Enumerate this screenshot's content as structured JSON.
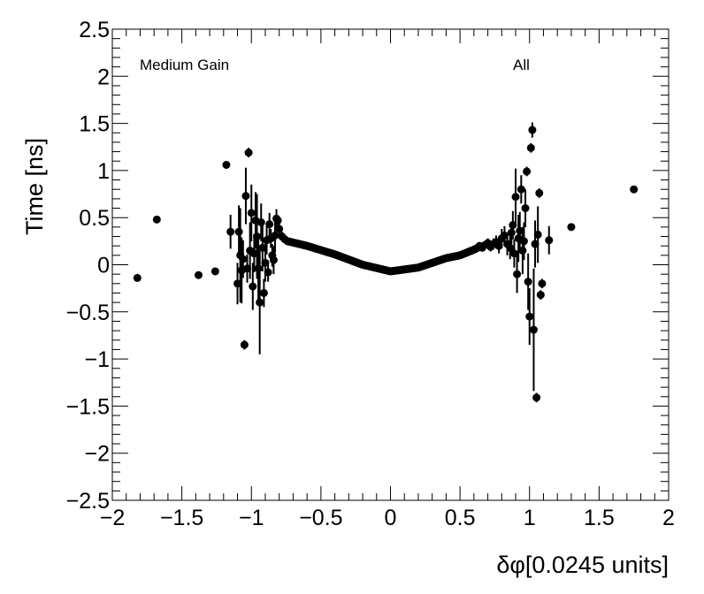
{
  "chart_data": {
    "type": "scatter",
    "title": "",
    "xlabel": "δφ[0.0245 units]",
    "ylabel": "Time [ns]",
    "xlim": [
      -2,
      2
    ],
    "ylim": [
      -2.5,
      2.5
    ],
    "x_ticks": [
      -2,
      -1.5,
      -1,
      -0.5,
      0,
      0.5,
      1,
      1.5,
      2
    ],
    "x_tick_labels": [
      "−2",
      "−1.5",
      "−1",
      "−0.5",
      "0",
      "0.5",
      "1",
      "1.5",
      "2"
    ],
    "y_ticks": [
      -2.5,
      -2,
      -1.5,
      -1,
      -0.5,
      0,
      0.5,
      1,
      1.5,
      2,
      2.5
    ],
    "y_tick_labels": [
      "−2.5",
      "−2",
      "−1.5",
      "−1",
      "−0.5",
      "0",
      "0.5",
      "1",
      "1.5",
      "2",
      "2.5"
    ],
    "grid": false,
    "legend": "none",
    "annotations": [
      "Medium Gain",
      "All"
    ],
    "marker_color": "#000000",
    "series": [
      {
        "x": [
          -1.82,
          -1.68,
          -1.38,
          -1.26,
          -1.18,
          -1.15,
          -1.1,
          -1.09,
          -1.08,
          -1.07,
          -1.06,
          -1.05,
          -1.04,
          -1.03,
          -1.02,
          -1.01,
          -1.0,
          -0.99,
          -0.98,
          -0.97,
          -0.96,
          -0.95,
          -0.94,
          -0.93,
          -0.92,
          -0.91,
          -0.9,
          -0.89,
          -0.88,
          -0.87,
          -0.86,
          -0.85,
          -0.84,
          -0.83,
          -0.82,
          -0.81,
          -0.8,
          -0.78,
          -0.76,
          -0.74,
          0.64,
          0.66,
          0.68,
          0.7,
          0.72,
          0.74,
          0.76,
          0.78,
          0.8,
          0.82,
          0.84,
          0.86,
          0.87,
          0.88,
          0.89,
          0.9,
          0.91,
          0.92,
          0.93,
          0.94,
          0.95,
          0.96,
          0.97,
          0.98,
          0.99,
          1.0,
          1.01,
          1.02,
          1.03,
          1.04,
          1.05,
          1.06,
          1.07,
          1.08,
          1.09,
          1.14,
          1.3,
          1.75
        ],
        "y": [
          -0.14,
          0.48,
          -0.11,
          -0.07,
          1.06,
          0.35,
          -0.2,
          0.35,
          0.1,
          -0.06,
          0.06,
          -0.85,
          0.73,
          -0.04,
          1.19,
          0.15,
          0.55,
          -0.23,
          0.12,
          0.47,
          0.3,
          -0.04,
          -0.4,
          0.45,
          0.18,
          -0.3,
          0.02,
          0.26,
          -0.08,
          0.43,
          0.28,
          0.1,
          0.05,
          0.31,
          0.49,
          0.47,
          0.38,
          0.3,
          0.27,
          0.25,
          0.2,
          0.18,
          0.21,
          0.23,
          0.19,
          0.22,
          0.24,
          0.2,
          0.28,
          0.31,
          0.22,
          0.18,
          0.34,
          0.42,
          0.12,
          0.72,
          -0.1,
          0.28,
          0.36,
          0.8,
          0.15,
          0.25,
          0.6,
          0.99,
          -0.18,
          -0.55,
          1.24,
          1.43,
          -0.69,
          0.22,
          -1.41,
          0.32,
          0.76,
          -0.32,
          -0.2,
          0.26,
          0.4,
          0.8
        ],
        "yerr": [
          0,
          0,
          0,
          0,
          0,
          0.18,
          0.22,
          0.28,
          0.5,
          0.35,
          0.2,
          0.05,
          0.3,
          0.15,
          0.05,
          0.3,
          0.3,
          0.25,
          0.2,
          0.3,
          0.45,
          0.35,
          0.55,
          0.2,
          0.25,
          0.15,
          0.2,
          0.15,
          0.1,
          0.12,
          0.1,
          0.12,
          0.15,
          0.18,
          0.1,
          0.05,
          0.08,
          0.05,
          0.04,
          0.03,
          0.03,
          0.03,
          0.04,
          0.05,
          0.05,
          0.06,
          0.07,
          0.08,
          0.1,
          0.1,
          0.12,
          0.12,
          0.12,
          0.15,
          0.15,
          0.3,
          0.2,
          0.25,
          0.2,
          0.15,
          0.25,
          0.2,
          0.2,
          0.05,
          0.3,
          0.3,
          0.05,
          0.08,
          0.65,
          0.25,
          0.05,
          0.3,
          0.05,
          0.05,
          0.05,
          0.15,
          0,
          0
        ]
      }
    ],
    "central_band": {
      "x_range": [
        -0.74,
        0.64
      ],
      "description": "dense points following y = 0.0175 - 0.113*cos(5*pi/4*x) ... smooth dip near 0",
      "y_at": {
        "-0.74": 0.25,
        "-0.6": 0.2,
        "-0.4": 0.11,
        "-0.2": 0.0,
        "0": -0.07,
        "0.2": -0.03,
        "0.4": 0.07,
        "0.5": 0.1,
        "0.6": 0.16,
        "0.64": 0.19
      }
    }
  }
}
